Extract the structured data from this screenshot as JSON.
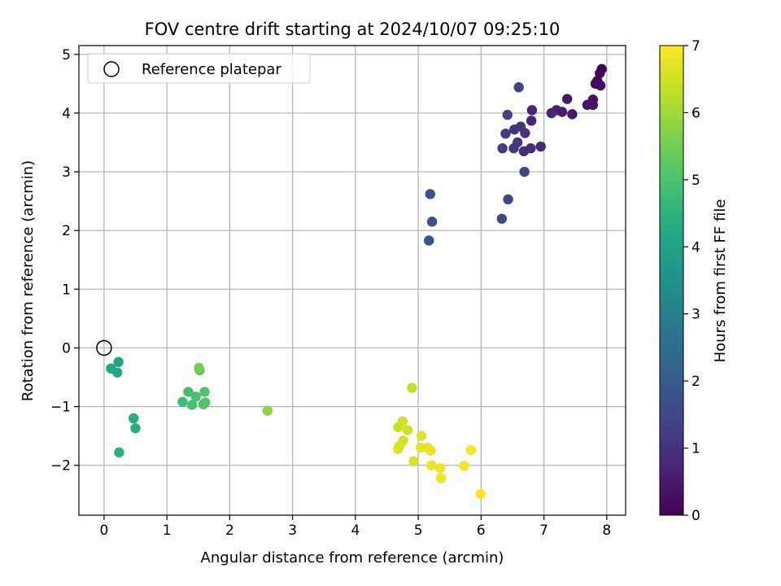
{
  "chart_data": {
    "type": "scatter",
    "title": "FOV centre drift starting at 2024/10/07 09:25:10",
    "xlabel": "Angular distance from reference (arcmin)",
    "ylabel": "Rotation from reference (arcmin)",
    "xlim": [
      -0.4,
      8.3
    ],
    "ylim": [
      -2.85,
      5.15
    ],
    "xticks": [
      0,
      1,
      2,
      3,
      4,
      5,
      6,
      7,
      8
    ],
    "yticks": [
      -2,
      -1,
      0,
      1,
      2,
      3,
      4,
      5
    ],
    "grid": true,
    "legend": {
      "location": "upper-left",
      "entries": [
        "Reference platepar"
      ]
    },
    "reference_point": {
      "x": 0,
      "y": 0
    },
    "colorbar": {
      "label": "Hours from first FF file",
      "colormap": "viridis",
      "range": [
        0,
        7
      ],
      "ticks": [
        0,
        1,
        2,
        3,
        4,
        5,
        6,
        7
      ]
    },
    "points": [
      {
        "x": 7.92,
        "y": 4.75,
        "h": 0.05
      },
      {
        "x": 7.89,
        "y": 4.68,
        "h": 0.1
      },
      {
        "x": 7.85,
        "y": 4.55,
        "h": 0.15
      },
      {
        "x": 7.82,
        "y": 4.5,
        "h": 0.2
      },
      {
        "x": 7.9,
        "y": 4.47,
        "h": 0.25
      },
      {
        "x": 7.78,
        "y": 4.23,
        "h": 0.3
      },
      {
        "x": 7.78,
        "y": 4.14,
        "h": 0.35
      },
      {
        "x": 7.69,
        "y": 4.14,
        "h": 0.4
      },
      {
        "x": 7.37,
        "y": 4.24,
        "h": 0.45
      },
      {
        "x": 7.45,
        "y": 3.98,
        "h": 0.5
      },
      {
        "x": 7.29,
        "y": 4.02,
        "h": 0.55
      },
      {
        "x": 7.2,
        "y": 4.05,
        "h": 0.6
      },
      {
        "x": 7.12,
        "y": 4.0,
        "h": 0.65
      },
      {
        "x": 6.81,
        "y": 4.05,
        "h": 0.7
      },
      {
        "x": 6.8,
        "y": 3.87,
        "h": 0.75
      },
      {
        "x": 6.95,
        "y": 3.43,
        "h": 0.8
      },
      {
        "x": 6.79,
        "y": 3.4,
        "h": 0.85
      },
      {
        "x": 6.68,
        "y": 3.35,
        "h": 0.9
      },
      {
        "x": 6.7,
        "y": 3.66,
        "h": 0.95
      },
      {
        "x": 6.63,
        "y": 3.77,
        "h": 1.0
      },
      {
        "x": 6.53,
        "y": 3.72,
        "h": 1.05
      },
      {
        "x": 6.58,
        "y": 3.5,
        "h": 1.1
      },
      {
        "x": 6.52,
        "y": 3.4,
        "h": 1.15
      },
      {
        "x": 6.34,
        "y": 3.4,
        "h": 1.2
      },
      {
        "x": 6.39,
        "y": 3.65,
        "h": 1.25
      },
      {
        "x": 6.42,
        "y": 3.97,
        "h": 1.3
      },
      {
        "x": 6.6,
        "y": 4.44,
        "h": 1.35
      },
      {
        "x": 6.69,
        "y": 3.0,
        "h": 1.4
      },
      {
        "x": 6.43,
        "y": 2.53,
        "h": 1.45
      },
      {
        "x": 6.33,
        "y": 2.2,
        "h": 1.5
      },
      {
        "x": 5.19,
        "y": 2.62,
        "h": 1.6
      },
      {
        "x": 5.22,
        "y": 2.15,
        "h": 1.7
      },
      {
        "x": 5.17,
        "y": 1.83,
        "h": 1.8
      },
      {
        "x": 0.23,
        "y": -0.24,
        "h": 4.1
      },
      {
        "x": 0.11,
        "y": -0.35,
        "h": 4.15
      },
      {
        "x": 0.21,
        "y": -0.42,
        "h": 4.2
      },
      {
        "x": 0.47,
        "y": -1.2,
        "h": 4.3
      },
      {
        "x": 0.5,
        "y": -1.37,
        "h": 4.35
      },
      {
        "x": 0.24,
        "y": -1.78,
        "h": 4.4
      },
      {
        "x": 1.25,
        "y": -0.92,
        "h": 4.8
      },
      {
        "x": 1.34,
        "y": -0.75,
        "h": 4.85
      },
      {
        "x": 1.4,
        "y": -0.97,
        "h": 4.9
      },
      {
        "x": 1.46,
        "y": -0.83,
        "h": 4.95
      },
      {
        "x": 1.6,
        "y": -0.75,
        "h": 5.0
      },
      {
        "x": 1.58,
        "y": -0.96,
        "h": 5.05
      },
      {
        "x": 1.61,
        "y": -0.93,
        "h": 5.1
      },
      {
        "x": 1.52,
        "y": -0.38,
        "h": 5.2
      },
      {
        "x": 1.51,
        "y": -0.34,
        "h": 5.5
      },
      {
        "x": 2.6,
        "y": -1.07,
        "h": 5.8
      },
      {
        "x": 4.9,
        "y": -0.68,
        "h": 6.4
      },
      {
        "x": 4.68,
        "y": -1.35,
        "h": 6.45
      },
      {
        "x": 4.75,
        "y": -1.25,
        "h": 6.5
      },
      {
        "x": 4.83,
        "y": -1.4,
        "h": 6.5
      },
      {
        "x": 4.76,
        "y": -1.58,
        "h": 6.55
      },
      {
        "x": 4.7,
        "y": -1.67,
        "h": 6.55
      },
      {
        "x": 4.68,
        "y": -1.72,
        "h": 6.6
      },
      {
        "x": 4.93,
        "y": -1.93,
        "h": 6.6
      },
      {
        "x": 5.05,
        "y": -1.5,
        "h": 6.65
      },
      {
        "x": 5.04,
        "y": -1.7,
        "h": 6.7
      },
      {
        "x": 5.15,
        "y": -1.7,
        "h": 6.7
      },
      {
        "x": 5.2,
        "y": -1.75,
        "h": 6.75
      },
      {
        "x": 5.21,
        "y": -2.0,
        "h": 6.8
      },
      {
        "x": 5.35,
        "y": -2.05,
        "h": 6.85
      },
      {
        "x": 5.36,
        "y": -2.22,
        "h": 6.85
      },
      {
        "x": 5.73,
        "y": -2.01,
        "h": 6.9
      },
      {
        "x": 5.84,
        "y": -1.74,
        "h": 6.95
      },
      {
        "x": 5.99,
        "y": -2.49,
        "h": 7.0
      }
    ]
  }
}
